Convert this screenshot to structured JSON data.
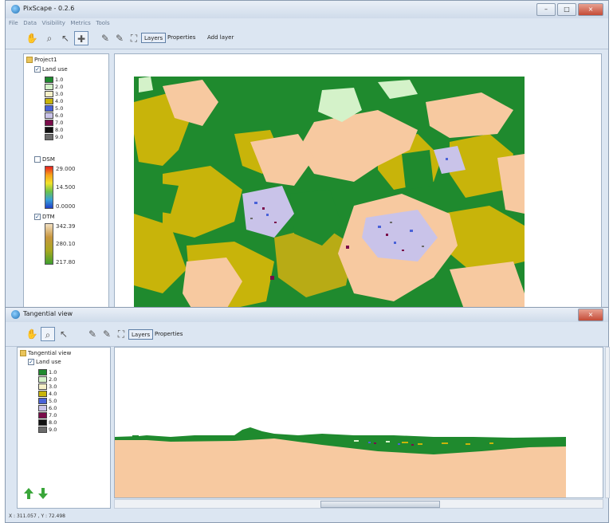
{
  "main_window": {
    "title": "PixScape - 0.2.6",
    "menu": [
      "File",
      "Data",
      "Visibility",
      "Metrics",
      "Tools"
    ],
    "window_buttons": [
      "minimize",
      "maximize",
      "close"
    ],
    "toolbar": {
      "tools": [
        "pan-hand",
        "zoom-magnifier",
        "select-arrow",
        "crosshair-target"
      ],
      "layers_label": "Layers",
      "properties_label": "Properties",
      "add_layer_label": "Add layer"
    },
    "tree": {
      "root": "Project1",
      "landuse_label": "Land use",
      "landuse_legend": [
        {
          "label": "1.0",
          "color": "#1f8a2e"
        },
        {
          "label": "2.0",
          "color": "#d4f2c9"
        },
        {
          "label": "3.0",
          "color": "#f5f0c8"
        },
        {
          "label": "4.0",
          "color": "#c8b40a"
        },
        {
          "label": "5.0",
          "color": "#4a62d8"
        },
        {
          "label": "6.0",
          "color": "#c9c3e9"
        },
        {
          "label": "7.0",
          "color": "#7a0c4a"
        },
        {
          "label": "8.0",
          "color": "#111111"
        },
        {
          "label": "9.0",
          "color": "#6b6b6b"
        }
      ],
      "dsm_label": "DSM",
      "dsm_ticks": [
        "29.000",
        "14.500",
        "0.0000"
      ],
      "dtm_label": "DTM",
      "dtm_ticks": [
        "342.39",
        "280.10",
        "217.80"
      ]
    }
  },
  "tangential_window": {
    "title": "Tangential view",
    "toolbar": {
      "layers_label": "Layers",
      "properties_label": "Properties"
    },
    "tree": {
      "root": "Tangential view",
      "landuse_label": "Land use",
      "landuse_legend": [
        {
          "label": "1.0",
          "color": "#1f8a2e"
        },
        {
          "label": "2.0",
          "color": "#d4f2c9"
        },
        {
          "label": "3.0",
          "color": "#f5f0c8"
        },
        {
          "label": "4.0",
          "color": "#c8b40a"
        },
        {
          "label": "5.0",
          "color": "#4a62d8"
        },
        {
          "label": "6.0",
          "color": "#c9c3e9"
        },
        {
          "label": "7.0",
          "color": "#7a0c4a"
        },
        {
          "label": "8.0",
          "color": "#111111"
        },
        {
          "label": "9.0",
          "color": "#6b6b6b"
        }
      ]
    },
    "status": "X : 311.057 , Y : 72.498"
  },
  "colors": {
    "forest": "#1f8a2e",
    "crop": "#c8b40a",
    "grass": "#f7c9a0",
    "light": "#d4f2c9",
    "urban": "#c9c3e9"
  }
}
